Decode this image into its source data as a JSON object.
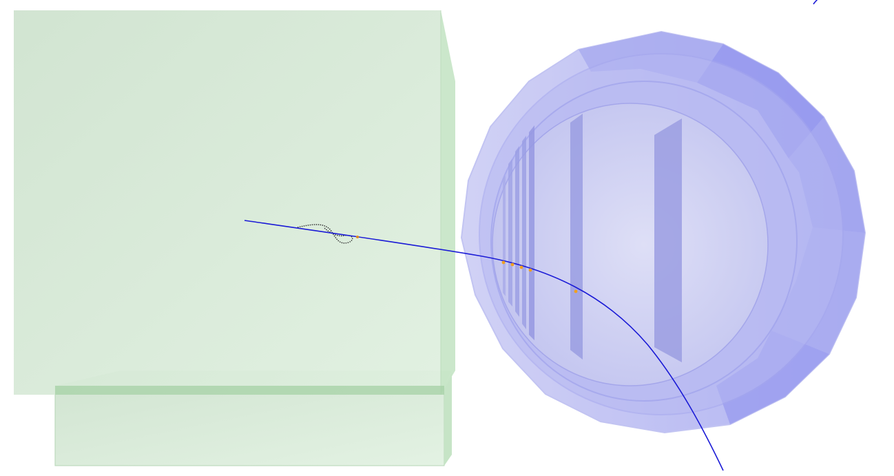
{
  "view": {
    "type": "3d-detector-event-display",
    "background": "#ffffff"
  },
  "colors": {
    "green_volume": "#b8dcb8",
    "blue_volume": "#8c8cf0",
    "track": "#1a1ad6",
    "hit": "#f0a020",
    "secondary_track": "#303030"
  },
  "elements": {
    "green_block": "green-block-volume",
    "blue_barrel": "cylindrical-detector-volume",
    "primary_track": "charged-particle-track",
    "secondary_track": "curling-secondary-track",
    "hits": "hit-markers"
  }
}
